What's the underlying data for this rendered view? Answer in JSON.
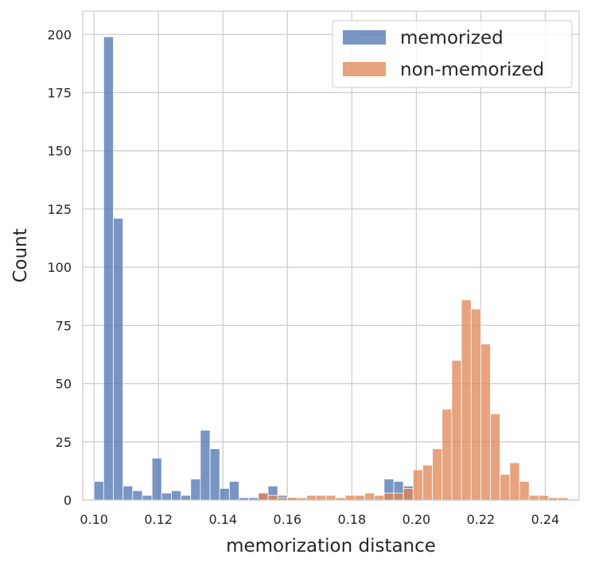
{
  "chart_data": {
    "type": "bar",
    "subtype": "overlaid-histogram",
    "title": "",
    "xlabel": "memorization distance",
    "ylabel": "Count",
    "xlim": [
      0.0965,
      0.2505
    ],
    "ylim": [
      0,
      210
    ],
    "xticks": [
      0.1,
      0.12,
      0.14,
      0.16,
      0.18,
      0.2,
      0.22,
      0.24
    ],
    "xtick_labels": [
      "0.10",
      "0.12",
      "0.14",
      "0.16",
      "0.18",
      "0.20",
      "0.22",
      "0.24"
    ],
    "yticks": [
      0,
      25,
      50,
      75,
      100,
      125,
      150,
      175,
      200
    ],
    "ytick_labels": [
      "0",
      "25",
      "50",
      "75",
      "100",
      "125",
      "150",
      "175",
      "200"
    ],
    "grid": true,
    "legend_position": "top-right",
    "bin_width": 0.003,
    "series": [
      {
        "name": "memorized",
        "color": "#4c72b0",
        "bin_starts": [
          0.1,
          0.103,
          0.106,
          0.109,
          0.112,
          0.115,
          0.118,
          0.121,
          0.124,
          0.127,
          0.13,
          0.133,
          0.136,
          0.139,
          0.142,
          0.145,
          0.148,
          0.151,
          0.154,
          0.157,
          0.16,
          0.19,
          0.193,
          0.196
        ],
        "values": [
          8,
          199,
          121,
          6,
          4,
          2,
          18,
          3,
          4,
          2,
          9,
          30,
          22,
          5,
          8,
          1,
          1,
          3,
          6,
          2,
          1,
          9,
          8,
          6
        ]
      },
      {
        "name": "non-memorized",
        "color": "#dd8452",
        "bin_starts": [
          0.151,
          0.154,
          0.157,
          0.16,
          0.163,
          0.166,
          0.169,
          0.172,
          0.175,
          0.178,
          0.181,
          0.184,
          0.187,
          0.19,
          0.193,
          0.196,
          0.199,
          0.202,
          0.205,
          0.208,
          0.211,
          0.214,
          0.217,
          0.22,
          0.223,
          0.226,
          0.229,
          0.232,
          0.235,
          0.238,
          0.241,
          0.244
        ],
        "values": [
          3,
          2,
          1,
          1,
          1,
          2,
          2,
          2,
          1,
          2,
          2,
          3,
          2,
          3,
          3,
          5,
          13,
          15,
          22,
          39,
          60,
          86,
          82,
          67,
          37,
          11,
          16,
          8,
          2,
          2,
          1,
          1
        ]
      }
    ]
  }
}
